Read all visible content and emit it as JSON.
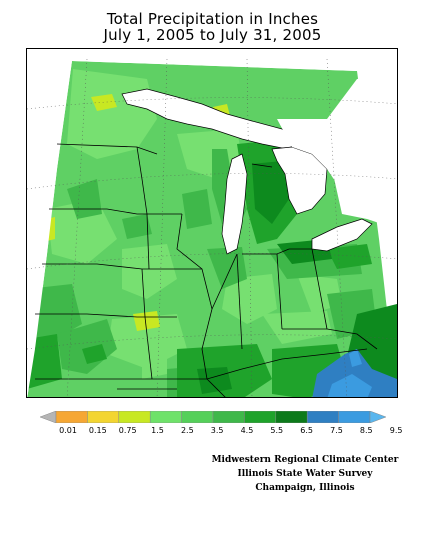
{
  "title": {
    "line1": "Total Precipitation in Inches",
    "line2": "July 1, 2005 to July 31, 2005"
  },
  "legend": {
    "ticks": [
      "0.01",
      "0.15",
      "0.75",
      "1.5",
      "2.5",
      "3.5",
      "4.5",
      "5.5",
      "6.5",
      "7.5",
      "8.5",
      "9.5"
    ],
    "colors": [
      "#b5b5b5",
      "#f6a734",
      "#f3d531",
      "#c8e823",
      "#6fe26a",
      "#55d05a",
      "#3fb84a",
      "#1fa32b",
      "#0d7a1b",
      "#2f7fc2",
      "#3b9be0",
      "#59b6ee"
    ]
  },
  "credits": {
    "line1": "Midwestern Regional Climate Center",
    "line2": "Illinois State Water Survey",
    "line3": "Champaign, Illinois"
  },
  "map": {
    "region": "Midwest",
    "variable": "Total Precipitation",
    "units": "Inches",
    "colors": {
      "base_green": "#5fd064",
      "light_green": "#77e071",
      "mid_green": "#3fb84a",
      "dark_green": "#1fa32b",
      "darker_green": "#0d8a1e",
      "yellow_green": "#c8e823",
      "blue": "#2f7fc2",
      "light_blue": "#3b9be0",
      "water": "#ffffff"
    }
  }
}
